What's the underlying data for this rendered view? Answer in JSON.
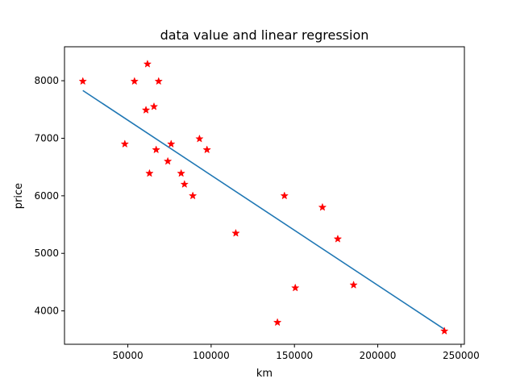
{
  "chart_data": {
    "type": "scatter",
    "title": "data value and linear regression",
    "xlabel": "km",
    "ylabel": "price",
    "xlim": [
      12000,
      252000
    ],
    "ylim": [
      3420,
      8590
    ],
    "xticks": [
      50000,
      100000,
      150000,
      200000,
      250000
    ],
    "xtick_labels": [
      "50000",
      "100000",
      "150000",
      "200000",
      "250000"
    ],
    "yticks": [
      4000,
      5000,
      6000,
      7000,
      8000
    ],
    "ytick_labels": [
      "4000",
      "5000",
      "6000",
      "7000",
      "8000"
    ],
    "grid": false,
    "series": [
      {
        "kind": "scatter",
        "marker": "star",
        "color": "#ff0000",
        "x": [
          240000,
          139800,
          150500,
          185500,
          176000,
          114800,
          166800,
          89000,
          144000,
          84000,
          82000,
          63000,
          74000,
          97500,
          67000,
          76000,
          48200,
          93000,
          60900,
          65700,
          54000,
          68500,
          23000,
          61800
        ],
        "y": [
          3650,
          3800,
          4400,
          4450,
          5250,
          5350,
          5800,
          6000,
          6000,
          6200,
          6390,
          6390,
          6600,
          6800,
          6800,
          6900,
          6900,
          6990,
          7490,
          7550,
          7990,
          7990,
          7990,
          8290
        ]
      },
      {
        "kind": "line",
        "color": "#1f77b4",
        "x": [
          23000,
          240000
        ],
        "y": [
          7830,
          3680
        ]
      }
    ]
  }
}
